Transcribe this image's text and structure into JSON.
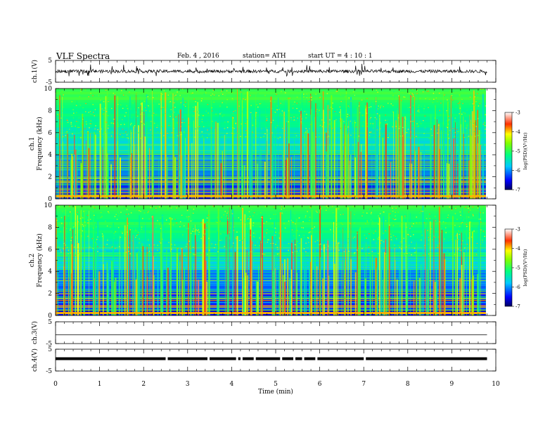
{
  "header": {
    "title": "VLF  Spectra",
    "date": "Feb. 4  , 2016",
    "station": "station= ATH",
    "start": "start  UT  =   4  : 10 : 1"
  },
  "chart_data": [
    {
      "type": "line",
      "ylabel": "ch.1(V)",
      "ylim": [
        -5,
        5
      ],
      "yticks": [
        "5",
        "-5"
      ],
      "description_values": {
        "baseline": 0.0
      }
    },
    {
      "type": "heatmap",
      "ylabel": "Frequency  (kHz)",
      "channel": "ch.1",
      "ylim": [
        0,
        10
      ],
      "yticks": [
        "0",
        "2",
        "4",
        "6",
        "8",
        "10"
      ],
      "colorbar": {
        "label": "log(PSD)(V²/Hz)",
        "range": [
          -7,
          -3
        ],
        "ticks": [
          "-3",
          "-4",
          "-5",
          "-6",
          "-7"
        ]
      }
    },
    {
      "type": "heatmap",
      "ylabel": "Frequency  (kHz)",
      "channel": "ch.2",
      "ylim": [
        0,
        10
      ],
      "yticks": [
        "0",
        "2",
        "4",
        "6",
        "8",
        "10"
      ],
      "colorbar": {
        "label": "log(PSD)(V²/Hz)",
        "range": [
          -7,
          -3
        ],
        "ticks": [
          "-3",
          "-4",
          "-5",
          "-6",
          "-7"
        ]
      }
    },
    {
      "type": "line",
      "ylabel": "ch.3(V)",
      "ylim": [
        -5,
        5
      ],
      "yticks": [
        "5",
        "-5"
      ]
    },
    {
      "type": "line",
      "ylabel": "ch.4(V)",
      "ylim": [
        -5,
        5
      ],
      "yticks": [
        "5",
        "-5"
      ]
    }
  ],
  "xaxis": {
    "label": "Time  (min)",
    "xlim": [
      0,
      10
    ],
    "ticks": [
      "0",
      "1",
      "2",
      "3",
      "4",
      "5",
      "6",
      "7",
      "8",
      "9",
      "10"
    ],
    "data_end": 9.8
  }
}
